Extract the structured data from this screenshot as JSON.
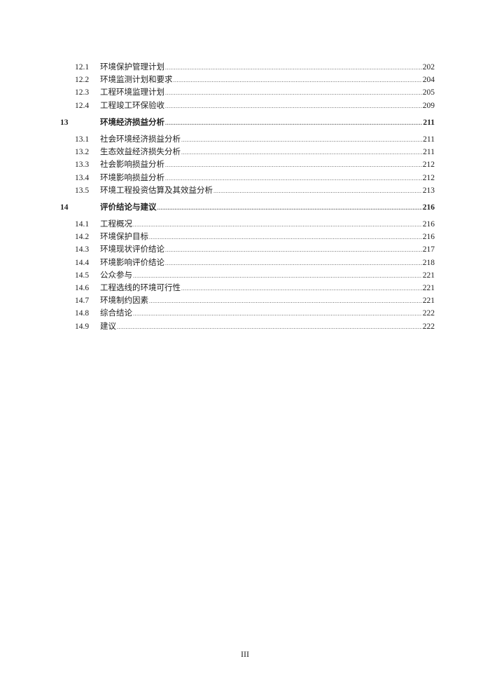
{
  "toc": [
    {
      "num": "12.1",
      "title": "环境保护管理计划",
      "page": "202",
      "level": 2
    },
    {
      "num": "12.2",
      "title": "环境监测计划和要求",
      "page": "204",
      "level": 2
    },
    {
      "num": "12.3",
      "title": "工程环境监理计划",
      "page": "205",
      "level": 2
    },
    {
      "num": "12.4",
      "title": "工程竣工环保验收",
      "page": "209",
      "level": 2
    },
    {
      "num": "13",
      "title": "环境经济损益分析",
      "page": "211",
      "level": 1
    },
    {
      "num": "13.1",
      "title": "社会环境经济损益分析",
      "page": "211",
      "level": 2
    },
    {
      "num": "13.2",
      "title": "生态效益经济损失分析",
      "page": "211",
      "level": 2
    },
    {
      "num": "13.3",
      "title": "社会影响损益分析",
      "page": "212",
      "level": 2
    },
    {
      "num": "13.4",
      "title": "环境影响损益分析",
      "page": "212",
      "level": 2
    },
    {
      "num": "13.5",
      "title": "环境工程投资估算及其效益分析",
      "page": "213",
      "level": 2
    },
    {
      "num": "14",
      "title": "评价结论与建议",
      "page": "216",
      "level": 1
    },
    {
      "num": "14.1",
      "title": "工程概况",
      "page": "216",
      "level": 2
    },
    {
      "num": "14.2",
      "title": "环境保护目标",
      "page": "216",
      "level": 2
    },
    {
      "num": "14.3",
      "title": "环境现状评价结论",
      "page": "217",
      "level": 2
    },
    {
      "num": "14.4",
      "title": "环境影响评价结论",
      "page": "218",
      "level": 2
    },
    {
      "num": "14.5",
      "title": "公众参与",
      "page": "221",
      "level": 2
    },
    {
      "num": "14.6",
      "title": "工程选线的环境可行性",
      "page": "221",
      "level": 2
    },
    {
      "num": "14.7",
      "title": "环境制约因素",
      "page": "221",
      "level": 2
    },
    {
      "num": "14.8",
      "title": "综合结论",
      "page": "222",
      "level": 2
    },
    {
      "num": "14.9",
      "title": "建议",
      "page": "222",
      "level": 2
    }
  ],
  "footer": {
    "page_number": "III"
  }
}
